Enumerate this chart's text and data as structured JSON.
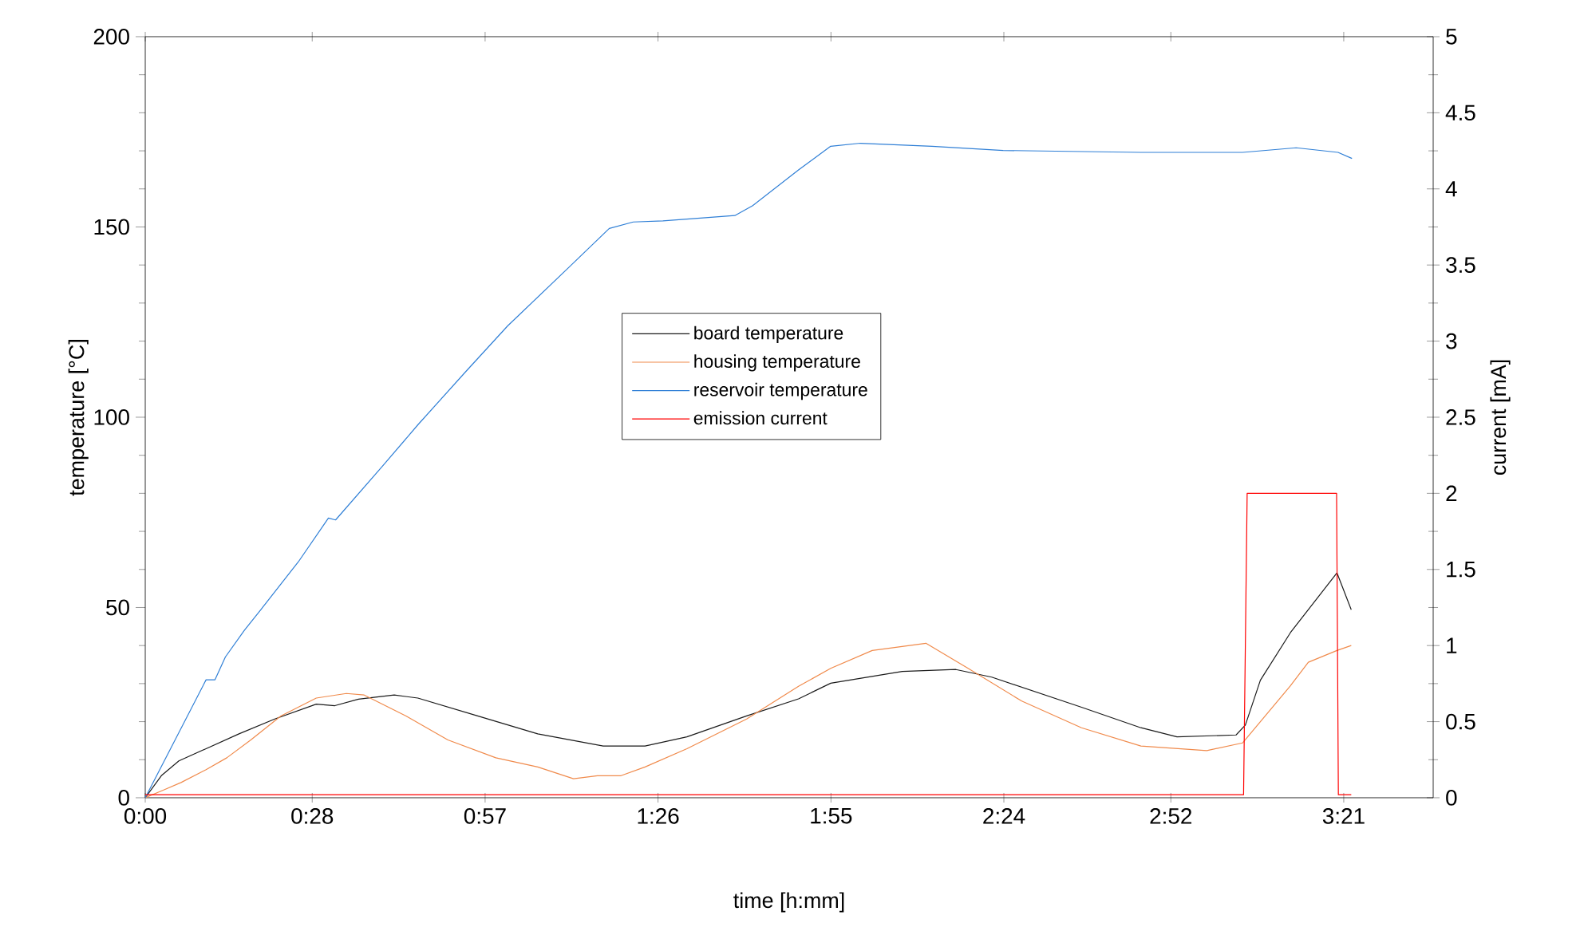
{
  "chart_data": {
    "type": "line",
    "xlabel": "time [h:mm]",
    "ylabel": "temperature [°C]",
    "y2label": "current [mA]",
    "xlim": [
      0,
      3.6
    ],
    "xticks": [
      {
        "value": 0,
        "label": "0:00"
      },
      {
        "value": 0.4667,
        "label": "0:28"
      },
      {
        "value": 0.95,
        "label": "0:57"
      },
      {
        "value": 1.4333,
        "label": "1:26"
      },
      {
        "value": 1.9167,
        "label": "1:55"
      },
      {
        "value": 2.4,
        "label": "2:24"
      },
      {
        "value": 2.8667,
        "label": "2:52"
      },
      {
        "value": 3.35,
        "label": "3:21"
      }
    ],
    "ylim": [
      0,
      200
    ],
    "yticks": [
      0,
      50,
      100,
      150,
      200
    ],
    "y2lim": [
      0,
      5
    ],
    "y2ticks": [
      0,
      0.5,
      1,
      1.5,
      2,
      2.5,
      3,
      3.5,
      4,
      4.5,
      5
    ],
    "legend": "center",
    "grid": false,
    "marker": "none",
    "line_style": "solid",
    "series": [
      {
        "name": "board temperature",
        "color": "#1a1a1a",
        "x": [
          0,
          0.045,
          0.094,
          0.17,
          0.262,
          0.362,
          0.478,
          0.53,
          0.596,
          0.696,
          0.762,
          0.929,
          1.097,
          1.28,
          1.397,
          1.514,
          1.681,
          1.826,
          1.916,
          2.116,
          2.266,
          2.366,
          2.617,
          2.783,
          2.884,
          3.049,
          3.075,
          3.117,
          3.201,
          3.331,
          3.371
        ],
        "values": [
          0,
          5.8,
          9.7,
          12.9,
          16.8,
          20.7,
          24.6,
          24.2,
          25.9,
          27,
          26.2,
          21.5,
          16.8,
          13.6,
          13.6,
          16,
          21.5,
          26,
          30.1,
          33.2,
          33.7,
          31.7,
          23.8,
          18.4,
          16,
          16.5,
          19.1,
          30.9,
          43.4,
          59.1,
          49.4
        ]
      },
      {
        "name": "housing temperature",
        "color": "#f08a4b",
        "x": [
          0,
          0.05,
          0.1,
          0.17,
          0.228,
          0.295,
          0.379,
          0.478,
          0.562,
          0.612,
          0.729,
          0.846,
          0.98,
          1.097,
          1.197,
          1.264,
          1.33,
          1.397,
          1.514,
          1.681,
          1.826,
          1.916,
          2.032,
          2.182,
          2.3,
          2.45,
          2.617,
          2.783,
          2.967,
          3.067,
          3.2,
          3.251,
          3.331,
          3.371
        ],
        "values": [
          0,
          2,
          4,
          7.4,
          10.5,
          15.2,
          21.5,
          26.2,
          27.4,
          27,
          21.5,
          15.2,
          10.5,
          8.1,
          5,
          5.8,
          5.8,
          8.1,
          12.9,
          20.7,
          29.3,
          34,
          38.7,
          40.6,
          34,
          25.4,
          18.4,
          13.6,
          12.4,
          14.4,
          29.3,
          35.6,
          38.7,
          40
        ]
      },
      {
        "name": "reservoir temperature",
        "color": "#2f7fd6",
        "x": [
          0,
          0.17,
          0.195,
          0.224,
          0.277,
          0.328,
          0.428,
          0.512,
          0.532,
          0.662,
          0.762,
          0.896,
          1.013,
          1.18,
          1.297,
          1.364,
          1.447,
          1.648,
          1.698,
          1.826,
          1.916,
          1.999,
          2.199,
          2.398,
          2.782,
          3.067,
          3.217,
          3.334,
          3.373
        ],
        "values": [
          0,
          31,
          31,
          37,
          44,
          50,
          62,
          73.5,
          73,
          87,
          98,
          112,
          124,
          139,
          149.6,
          151.3,
          151.6,
          153,
          155.6,
          165,
          171.2,
          172,
          171.2,
          170.1,
          169.6,
          169.6,
          170.8,
          169.6,
          168
        ]
      },
      {
        "name": "emission current",
        "color": "#ff0000",
        "axis": "y2",
        "x": [
          0,
          3.07,
          3.08,
          3.2,
          3.33,
          3.335,
          3.371
        ],
        "values": [
          0.02,
          0.02,
          2,
          2,
          2,
          0.02,
          0.02
        ]
      }
    ]
  }
}
